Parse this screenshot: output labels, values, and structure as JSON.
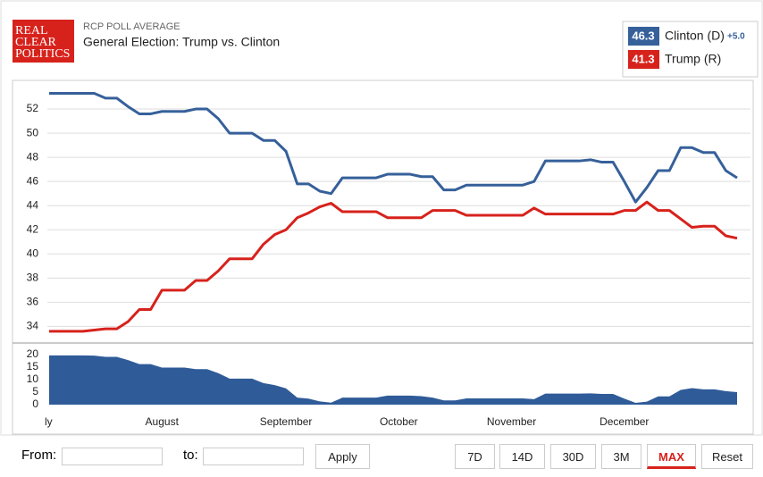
{
  "header": {
    "logo": [
      "REAL",
      "CLEAR",
      "POLITICS"
    ],
    "kicker": "RCP POLL AVERAGE",
    "title": "General Election: Trump vs. Clinton"
  },
  "legend": {
    "spread_label": "+5.0"
  },
  "chart_data": {
    "type": "line",
    "categories": [
      "ly",
      null,
      null,
      null,
      null,
      null,
      null,
      null,
      null,
      null,
      "August",
      null,
      null,
      null,
      null,
      null,
      null,
      null,
      null,
      null,
      null,
      "September",
      null,
      null,
      null,
      null,
      null,
      null,
      null,
      null,
      null,
      "October",
      null,
      null,
      null,
      null,
      null,
      null,
      null,
      null,
      null,
      "November",
      null,
      null,
      null,
      null,
      null,
      null,
      null,
      null,
      null,
      "December",
      null,
      null,
      null,
      null,
      null,
      null,
      null,
      null,
      null,
      null
    ],
    "series": [
      {
        "name": "Clinton (D)",
        "color": "#36609a",
        "values": [
          53.3,
          53.3,
          53.3,
          53.3,
          53.3,
          52.9,
          52.9,
          52.2,
          51.6,
          51.6,
          51.8,
          51.8,
          51.8,
          52.0,
          52.0,
          51.2,
          50.0,
          50.0,
          50.0,
          49.4,
          49.4,
          48.5,
          45.8,
          45.8,
          45.2,
          45.0,
          46.3,
          46.3,
          46.3,
          46.3,
          46.6,
          46.6,
          46.6,
          46.4,
          46.4,
          45.3,
          45.3,
          45.7,
          45.7,
          45.7,
          45.7,
          45.7,
          45.7,
          46.0,
          47.7,
          47.7,
          47.7,
          47.7,
          47.8,
          47.6,
          47.6,
          46.0,
          44.3,
          45.5,
          46.9,
          46.9,
          48.8,
          48.8,
          48.4,
          48.4,
          46.9,
          46.3
        ]
      },
      {
        "name": "Trump (R)",
        "color": "#d7221c",
        "values": [
          33.6,
          33.6,
          33.6,
          33.6,
          33.7,
          33.8,
          33.8,
          34.4,
          35.4,
          35.4,
          37.0,
          37.0,
          37.0,
          37.8,
          37.8,
          38.6,
          39.6,
          39.6,
          39.6,
          40.8,
          41.6,
          42.0,
          43.0,
          43.4,
          43.9,
          44.2,
          43.5,
          43.5,
          43.5,
          43.5,
          43.0,
          43.0,
          43.0,
          43.0,
          43.6,
          43.6,
          43.6,
          43.2,
          43.2,
          43.2,
          43.2,
          43.2,
          43.2,
          43.8,
          43.3,
          43.3,
          43.3,
          43.3,
          43.3,
          43.3,
          43.3,
          43.6,
          43.6,
          44.3,
          43.6,
          43.6,
          42.9,
          42.2,
          42.3,
          42.3,
          41.5,
          41.3
        ]
      }
    ],
    "ylim": [
      32.7,
      54
    ],
    "yticks": [
      34,
      36,
      38,
      40,
      42,
      44,
      46,
      48,
      50,
      52
    ],
    "grid": true,
    "spread": {
      "type": "area",
      "color": "#2f5b98",
      "ylim": [
        0,
        20
      ],
      "yticks": [
        0,
        5,
        10,
        15,
        20
      ],
      "values": [
        19.7,
        19.7,
        19.7,
        19.7,
        19.6,
        19.1,
        19.1,
        17.8,
        16.2,
        16.2,
        14.8,
        14.8,
        14.8,
        14.2,
        14.2,
        12.6,
        10.4,
        10.4,
        10.4,
        8.6,
        7.8,
        6.5,
        2.8,
        2.4,
        1.3,
        0.8,
        2.8,
        2.8,
        2.8,
        2.8,
        3.6,
        3.6,
        3.6,
        3.4,
        2.8,
        1.7,
        1.7,
        2.5,
        2.5,
        2.5,
        2.5,
        2.5,
        2.5,
        2.2,
        4.4,
        4.4,
        4.4,
        4.4,
        4.5,
        4.3,
        4.3,
        2.4,
        0.7,
        1.2,
        3.3,
        3.3,
        5.9,
        6.6,
        6.1,
        6.1,
        5.4,
        5.0
      ]
    }
  },
  "controls": {
    "from": "From:",
    "to": "to:",
    "apply": "Apply",
    "ranges": [
      "7D",
      "14D",
      "30D",
      "3M",
      "MAX",
      "Reset"
    ],
    "active": "MAX"
  }
}
